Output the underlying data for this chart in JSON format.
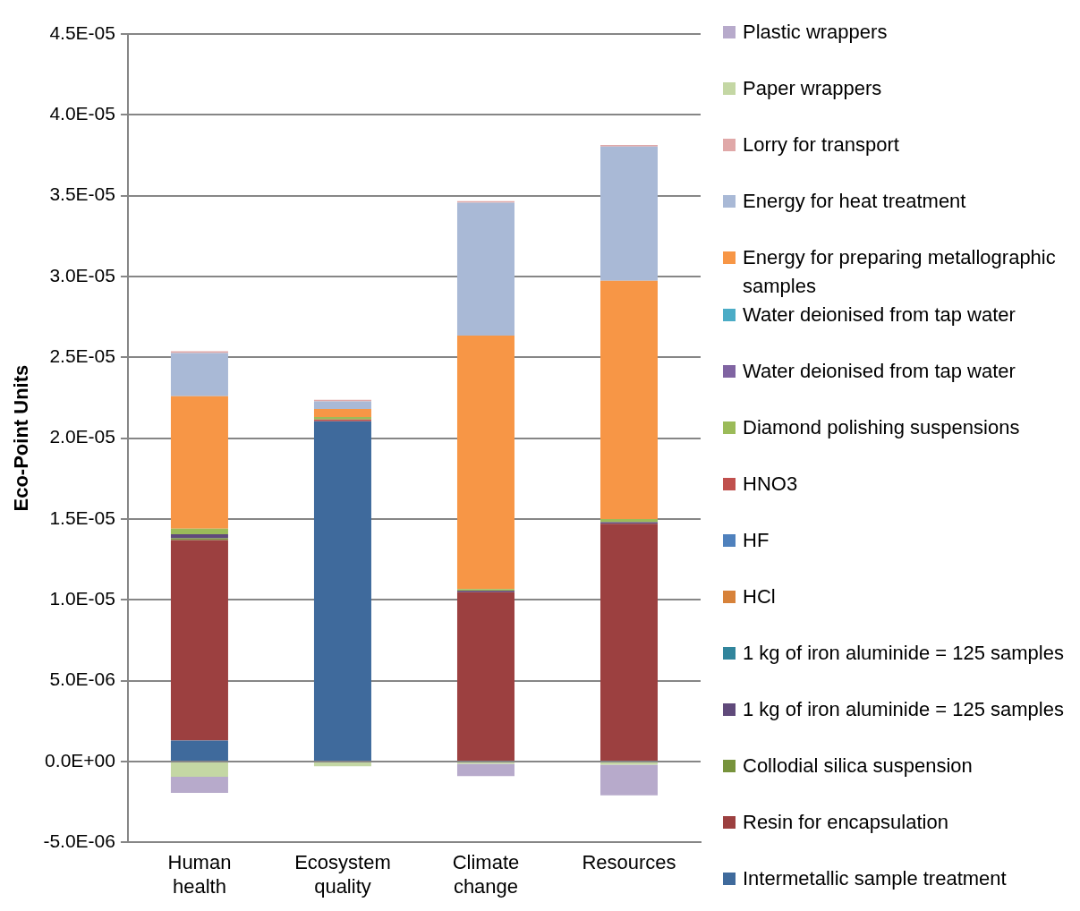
{
  "chart_data": {
    "type": "bar",
    "stacked": true,
    "ylabel": "Eco-Point Units",
    "categories": [
      "Human health",
      "Ecosystem quality",
      "Climate change",
      "Resources"
    ],
    "ylim": [
      -5e-06,
      4.5e-05
    ],
    "yticks": [
      {
        "value": -5e-06,
        "label": "-5.0E-06"
      },
      {
        "value": 0,
        "label": "0.0E+00"
      },
      {
        "value": 5e-06,
        "label": "5.0E-06"
      },
      {
        "value": 1e-05,
        "label": "1.0E-05"
      },
      {
        "value": 1.5e-05,
        "label": "1.5E-05"
      },
      {
        "value": 2e-05,
        "label": "2.0E-05"
      },
      {
        "value": 2.5e-05,
        "label": "2.5E-05"
      },
      {
        "value": 3e-05,
        "label": "3.0E-05"
      },
      {
        "value": 3.5e-05,
        "label": "3.5E-05"
      },
      {
        "value": 4e-05,
        "label": "4.0E-05"
      },
      {
        "value": 4.5e-05,
        "label": "4.5E-05"
      }
    ],
    "grid": "y",
    "legend": "right",
    "series": [
      {
        "name": "Intermetallic sample treatment",
        "color": "#3f6a9c",
        "values": [
          1.3e-06,
          2.105e-05,
          0,
          0
        ]
      },
      {
        "name": "Resin for encapsulation",
        "color": "#9c4040",
        "values": [
          1.24e-05,
          0,
          1.047e-05,
          1.47e-05
        ]
      },
      {
        "name": "Collodial silica suspension",
        "color": "#77933c",
        "values": [
          1e-07,
          0,
          0,
          0
        ]
      },
      {
        "name": "1 kg of iron aluminide = 125 samples",
        "color": "#604a7b",
        "values": [
          2.5e-07,
          0,
          1e-07,
          1e-07
        ]
      },
      {
        "name": "1 kg of iron aluminide = 125 samples",
        "color": "#31859c",
        "values": [
          0,
          0,
          0,
          0
        ]
      },
      {
        "name": "HCl",
        "color": "#d7823a",
        "values": [
          0,
          0,
          0,
          0
        ]
      },
      {
        "name": "HF",
        "color": "#4f81bd",
        "values": [
          0,
          0,
          0,
          0
        ]
      },
      {
        "name": "HNO3",
        "color": "#c0504d",
        "values": [
          0,
          1e-07,
          0,
          0
        ]
      },
      {
        "name": "Diamond polishing suspensions",
        "color": "#9bbb59",
        "values": [
          3.5e-07,
          1.5e-07,
          1e-07,
          2e-07
        ]
      },
      {
        "name": "Water deionised from tap water",
        "color": "#8064a2",
        "values": [
          0,
          0,
          0,
          0
        ]
      },
      {
        "name": "Water deionised from tap water",
        "color": "#4bacc6",
        "values": [
          0,
          0,
          0,
          0
        ]
      },
      {
        "name": "Energy for preparing metallographic samples",
        "color": "#f79646",
        "values": [
          8.2e-06,
          5e-07,
          1.567e-05,
          1.474e-05
        ]
      },
      {
        "name": "Energy for heat  treatment",
        "color": "#a9b9d6",
        "values": [
          2.67e-06,
          4.7e-07,
          8.22e-06,
          8.3e-06
        ]
      },
      {
        "name": "Lorry for transport",
        "color": "#e0a8a8",
        "values": [
          1e-07,
          1e-07,
          1e-07,
          1e-07
        ]
      },
      {
        "name": "Paper wrappers",
        "color": "#c4d7a4",
        "values": [
          -9.5e-07,
          -3e-07,
          -1.5e-07,
          -2e-07
        ]
      },
      {
        "name": "Plastic wrappers",
        "color": "#b7aacb",
        "values": [
          -1e-06,
          0,
          -7.5e-07,
          -1.9e-06
        ]
      }
    ]
  }
}
